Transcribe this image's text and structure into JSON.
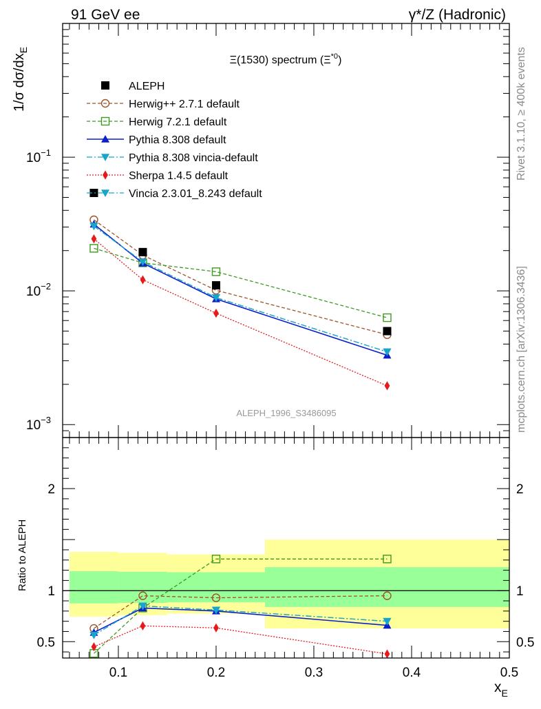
{
  "header": {
    "left": "91 GeV ee",
    "right": "γ*/Z (Hadronic)"
  },
  "side_labels": {
    "rivet": "Rivet 3.1.10, ≥ 400k events",
    "mcplots": "mcplots.cern.ch [arXiv:1306.3436]"
  },
  "chart_data": {
    "type": "line",
    "title": "Ξ(1530) spectrum (Ξ*0)",
    "title_main": "Ξ(1530) spectrum (Ξ",
    "title_sup": "*0",
    "title_close": ")",
    "analysis_label": "ALEPH_1996_S3486095",
    "xlabel": "x",
    "xlabel_sub": "E",
    "ylabel": "1/σ dσ/dx",
    "ylabel_sub": "E",
    "yscale": "log",
    "xlim": [
      0.043,
      0.5
    ],
    "ylim": [
      0.0008,
      1.0
    ],
    "x_ticks": [
      "0.1",
      "0.2",
      "0.3",
      "0.4",
      "0.5"
    ],
    "y_ticks": [
      {
        "base": "10",
        "exp": "−1",
        "value": 0.1
      },
      {
        "base": "10",
        "exp": "−2",
        "value": 0.01
      },
      {
        "base": "10",
        "exp": "−3",
        "value": 0.001
      }
    ],
    "x": [
      0.075,
      0.125,
      0.2,
      0.375
    ],
    "bins": [
      [
        0.05,
        0.1
      ],
      [
        0.1,
        0.15
      ],
      [
        0.15,
        0.25
      ],
      [
        0.25,
        0.5
      ]
    ],
    "series": [
      {
        "name": "ALEPH",
        "color": "#000000",
        "marker": "square",
        "line": "none",
        "values": [
          0.054,
          0.0195,
          0.011,
          0.005
        ]
      },
      {
        "name": "Herwig++ 2.7.1 default",
        "color": "#a0522d",
        "marker": "circle-open",
        "line": "dashed",
        "values": [
          0.034,
          0.0185,
          0.0101,
          0.0047
        ]
      },
      {
        "name": "Herwig 7.2.1 default",
        "color": "#3c9a1e",
        "marker": "square-open",
        "line": "dashed",
        "values": [
          0.0208,
          0.0162,
          0.0139,
          0.0063
        ]
      },
      {
        "name": "Pythia 8.308 default",
        "color": "#0b1fcc",
        "marker": "triangle-up",
        "line": "solid",
        "values": [
          0.0315,
          0.0161,
          0.0087,
          0.0033
        ]
      },
      {
        "name": "Pythia 8.308 vincia-default",
        "color": "#19a5c9",
        "marker": "triangle-down",
        "line": "dashdot",
        "values": [
          0.0305,
          0.0165,
          0.0089,
          0.0035
        ]
      },
      {
        "name": "Sherpa 1.4.5 default",
        "color": "#e41a1c",
        "marker": "diamond",
        "line": "dotted",
        "values": [
          0.0245,
          0.0121,
          0.0068,
          0.00195
        ]
      },
      {
        "name": "Vincia 2.3.01_8.243 default",
        "color": "#19a5c9",
        "marker": "triangle-down",
        "line": "dashdot",
        "values": [
          0.0305,
          0.0165,
          0.0089,
          0.0035
        ]
      }
    ],
    "ratio": {
      "ylabel": "Ratio to ALEPH",
      "ylim": [
        0.34,
        2.5
      ],
      "y_ticks": [
        "0.5",
        "1",
        "2"
      ],
      "bands": {
        "yellow": [
          [
            0.745,
            1.38
          ],
          [
            0.76,
            1.37
          ],
          [
            0.775,
            1.355
          ],
          [
            0.63,
            1.5
          ]
        ],
        "green": [
          [
            0.875,
            1.19
          ],
          [
            0.88,
            1.185
          ],
          [
            0.885,
            1.18
          ],
          [
            0.84,
            1.23
          ]
        ]
      },
      "series": [
        {
          "name": "Herwig++ 2.7.1 default",
          "values": [
            0.63,
            0.95,
            0.93,
            0.95
          ]
        },
        {
          "name": "Herwig 7.2.1 default",
          "values": [
            0.385,
            0.83,
            1.31,
            1.31
          ]
        },
        {
          "name": "Pythia 8.308 default",
          "values": [
            0.59,
            0.83,
            0.8,
            0.66
          ]
        },
        {
          "name": "Pythia 8.308 vincia-default",
          "values": [
            0.565,
            0.85,
            0.81,
            0.7
          ]
        },
        {
          "name": "Sherpa 1.4.5 default",
          "values": [
            0.45,
            0.655,
            0.635,
            0.38
          ]
        },
        {
          "name": "Vincia 2.3.01_8.243 default",
          "values": [
            0.565,
            0.85,
            0.81,
            0.7
          ]
        }
      ],
      "errors": {
        "Sherpa 1.4.5 default": [
          0.02,
          0.04,
          0.03,
          0.0
        ]
      }
    }
  }
}
